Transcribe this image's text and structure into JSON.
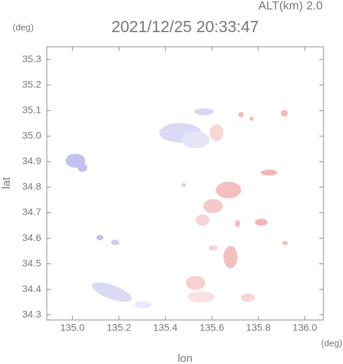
{
  "chart_data": {
    "type": "radar-map",
    "altitude_label": "ALT(km)  2.0",
    "title": "2021/12/25 20:33:47",
    "y_unit": "(deg)",
    "x_unit": "(deg)",
    "x_label": "lon",
    "y_label": "lat",
    "xlim": [
      134.89,
      136.08
    ],
    "ylim": [
      34.28,
      35.35
    ],
    "xticks": [
      {
        "value": 135,
        "label": "135.0"
      },
      135.2,
      135.4,
      135.6,
      135.8,
      {
        "value": 136,
        "label": "136.0"
      }
    ],
    "yticks": [
      34.3,
      34.4,
      34.5,
      34.6,
      34.7,
      34.8,
      34.9,
      {
        "value": 35,
        "label": "35.0"
      },
      35.1,
      35.2,
      35.3
    ]
  }
}
